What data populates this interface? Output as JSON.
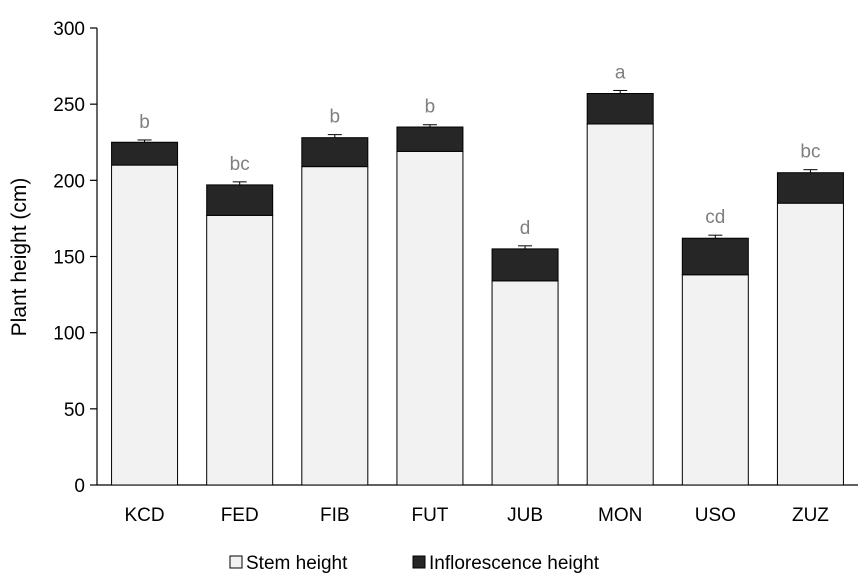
{
  "chart_data": {
    "type": "bar",
    "stacked": true,
    "title": "",
    "xlabel": "",
    "ylabel": "Plant height (cm)",
    "ylim": [
      0,
      300
    ],
    "yticks": [
      0,
      50,
      100,
      150,
      200,
      250,
      300
    ],
    "grid": false,
    "legend_position": "bottom",
    "categories": [
      "KCD",
      "FED",
      "FIB",
      "FUT",
      "JUB",
      "MON",
      "USO",
      "ZUZ"
    ],
    "series": [
      {
        "name": "Stem height",
        "color": "#f2f2f2",
        "values": [
          210,
          177,
          209,
          219,
          134,
          237,
          138,
          185
        ]
      },
      {
        "name": "Inflorescence height",
        "color": "#262626",
        "values": [
          15,
          20,
          19,
          16,
          21,
          20,
          24,
          20
        ]
      }
    ],
    "error_bars": [
      1.5,
      2,
      2,
      1.5,
      2,
      2,
      2,
      2
    ],
    "significance_letters": [
      "b",
      "bc",
      "b",
      "b",
      "d",
      "a",
      "cd",
      "bc"
    ]
  }
}
